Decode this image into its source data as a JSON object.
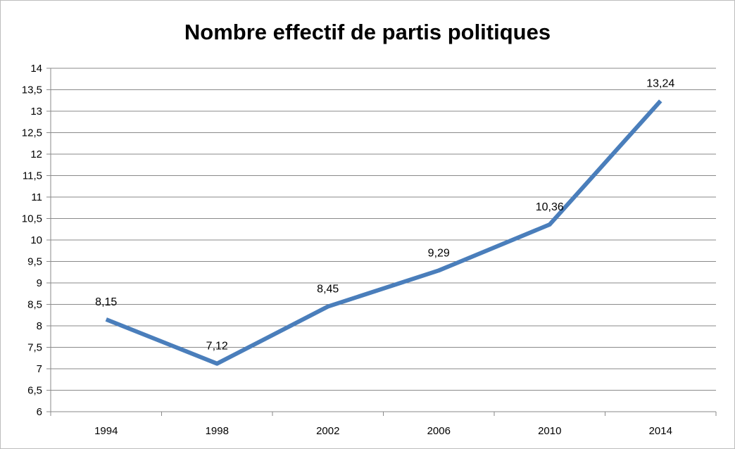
{
  "chart_data": {
    "type": "line",
    "title": "Nombre effectif de partis politiques",
    "categories": [
      "1994",
      "1998",
      "2002",
      "2006",
      "2010",
      "2014"
    ],
    "series": [
      {
        "values": [
          8.15,
          7.12,
          8.45,
          9.29,
          10.36,
          13.24
        ]
      }
    ],
    "data_labels": [
      "8,15",
      "7,12",
      "8,45",
      "9,29",
      "10,36",
      "13,24"
    ],
    "y_ticks": [
      "6",
      "6,5",
      "7",
      "7,5",
      "8",
      "8,5",
      "9",
      "9,5",
      "10",
      "10,5",
      "11",
      "11,5",
      "12",
      "12,5",
      "13",
      "13,5",
      "14"
    ],
    "ylim": [
      6,
      14
    ],
    "grid": true,
    "legend": "none",
    "line_color": "#4a7ebb"
  }
}
